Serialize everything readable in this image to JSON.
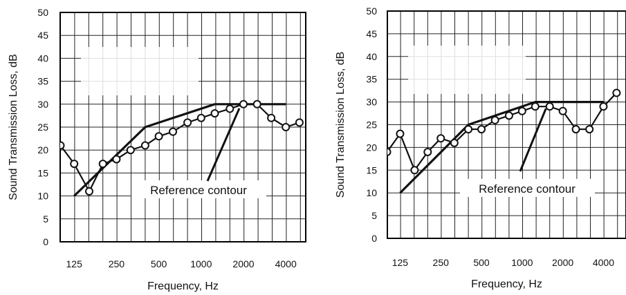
{
  "chart_data": [
    {
      "type": "line",
      "xlabel": "Frequency, Hz",
      "ylabel": "Sound Transmission Loss, dB",
      "ylim": [
        0,
        50
      ],
      "yticks": [
        "0",
        "5",
        "10",
        "15",
        "20",
        "25",
        "30",
        "35",
        "40",
        "45",
        "50"
      ],
      "x_scale": "log (1/3-octave bands)",
      "xticks": [
        {
          "f": 125,
          "label": "125"
        },
        {
          "f": 250,
          "label": "250"
        },
        {
          "f": 500,
          "label": "500"
        },
        {
          "f": 1000,
          "label": "1000"
        },
        {
          "f": 2000,
          "label": "2000"
        },
        {
          "f": 4000,
          "label": "4000"
        }
      ],
      "grid": true,
      "annotation": "Reference contour",
      "series": [
        {
          "style": "line-with-open-circles",
          "x": [
            100,
            125,
            160,
            200,
            250,
            315,
            400,
            500,
            630,
            800,
            1000,
            1250,
            1600,
            2000,
            2500,
            3150,
            4000,
            5000
          ],
          "y": [
            21,
            17,
            11,
            17,
            18,
            20,
            21,
            23,
            24,
            26,
            27,
            28,
            29,
            30,
            30,
            27,
            25,
            26
          ]
        },
        {
          "style": "thick-line",
          "x": [
            125,
            400,
            1250,
            4000
          ],
          "y": [
            10,
            25,
            30,
            30
          ]
        }
      ]
    },
    {
      "type": "line",
      "xlabel": "Frequency, Hz",
      "ylabel": "Sound Transmission Loss, dB",
      "ylim": [
        0,
        50
      ],
      "yticks": [
        "0",
        "5",
        "10",
        "15",
        "20",
        "25",
        "30",
        "35",
        "40",
        "45",
        "50"
      ],
      "x_scale": "log (1/3-octave bands)",
      "xticks": [
        {
          "f": 125,
          "label": "125"
        },
        {
          "f": 250,
          "label": "250"
        },
        {
          "f": 500,
          "label": "500"
        },
        {
          "f": 1000,
          "label": "1000"
        },
        {
          "f": 2000,
          "label": "2000"
        },
        {
          "f": 4000,
          "label": "4000"
        }
      ],
      "grid": true,
      "annotation": "Reference contour",
      "series": [
        {
          "style": "line-with-open-circles",
          "x": [
            100,
            125,
            160,
            200,
            250,
            315,
            400,
            500,
            630,
            800,
            1000,
            1250,
            1600,
            2000,
            2500,
            3150,
            4000,
            5000
          ],
          "y": [
            19,
            23,
            15,
            19,
            22,
            21,
            24,
            24,
            26,
            27,
            28,
            29,
            29,
            28,
            24,
            24,
            29,
            32
          ]
        },
        {
          "style": "thick-line",
          "x": [
            125,
            400,
            1250,
            4000
          ],
          "y": [
            10,
            25,
            30,
            30
          ]
        }
      ]
    }
  ]
}
